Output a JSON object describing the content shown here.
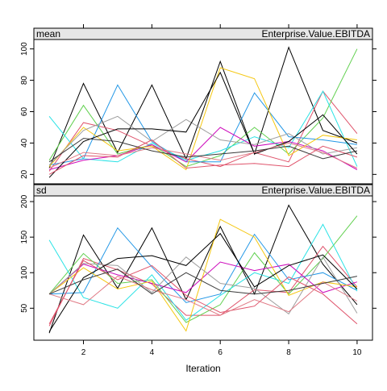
{
  "chart_data": {
    "type": "line",
    "xlabel": "Iteration",
    "x": [
      1,
      2,
      3,
      4,
      5,
      6,
      7,
      8,
      9,
      10
    ],
    "x_ticks": [
      2,
      4,
      6,
      8,
      10
    ],
    "xlim": [
      0.55,
      10.45
    ],
    "colors": [
      "#000000",
      "#DF536B",
      "#61D04F",
      "#2297E6",
      "#28E2E5",
      "#CD0BBC",
      "#F5C710",
      "#9E9E9E",
      "#000000",
      "#DF536B",
      "#E07A85",
      "#3A3A3A"
    ],
    "panels": [
      {
        "strip_left": "mean",
        "strip_right": "Enterprise.Value.EBITDA",
        "ylim": [
          14,
          106
        ],
        "y_ticks": [
          20,
          40,
          60,
          80,
          100
        ],
        "series": [
          {
            "values": [
              24,
              78,
              34,
              77,
              30,
              92,
              33,
              101,
              48,
              40
            ]
          },
          {
            "values": [
              22,
              53,
              48,
              38,
              30,
              25,
              34,
              28,
              73,
              46
            ]
          },
          {
            "values": [
              29,
              64,
              33,
              39,
              25,
              32,
              50,
              33,
              56,
              100
            ]
          },
          {
            "values": [
              26,
              30,
              77,
              41,
              28,
              28,
              72,
              44,
              42,
              39
            ]
          },
          {
            "values": [
              57,
              30,
              28,
              40,
              29,
              35,
              44,
              37,
              73,
              25
            ]
          },
          {
            "values": [
              23,
              29,
              32,
              39,
              28,
              50,
              38,
              41,
              35,
              23
            ]
          },
          {
            "values": [
              25,
              50,
              35,
              38,
              23,
              88,
              81,
              32,
              45,
              42
            ]
          },
          {
            "values": [
              26,
              48,
              57,
              41,
              55,
              42,
              39,
              46,
              33,
              37
            ]
          },
          {
            "values": [
              18,
              41,
              49,
              49,
              47,
              85,
              33,
              41,
              58,
              33
            ]
          },
          {
            "values": [
              20,
              32,
              31,
              42,
              24,
              26,
              27,
              25,
              38,
              31
            ]
          },
          {
            "values": [
              24,
              34,
              32,
              37,
              33,
              29,
              34,
              40,
              34,
              24
            ]
          },
          {
            "values": [
              28,
              43,
              41,
              35,
              31,
              33,
              35,
              38,
              30,
              35
            ]
          }
        ]
      },
      {
        "strip_left": "sd",
        "strip_right": "Enterprise.Value.EBITDA",
        "ylim": [
          5,
          208
        ],
        "y_ticks": [
          50,
          100,
          150,
          200
        ],
        "series": [
          {
            "values": [
              15,
              153,
              78,
              163,
              62,
              165,
              70,
              195,
              112,
              55
            ]
          },
          {
            "values": [
              25,
              120,
              104,
              84,
              40,
              40,
              76,
              72,
              137,
              80
            ]
          },
          {
            "values": [
              70,
              127,
              85,
              90,
              30,
              55,
              128,
              70,
              120,
              180
            ]
          },
          {
            "values": [
              70,
              72,
              163,
              108,
              58,
              70,
              154,
              90,
              100,
              75
            ]
          },
          {
            "values": [
              146,
              65,
              50,
              97,
              33,
              68,
              100,
              85,
              168,
              74
            ]
          },
          {
            "values": [
              70,
              112,
              97,
              85,
              72,
              115,
              103,
              112,
              72,
              87
            ]
          },
          {
            "values": [
              70,
              107,
              77,
              88,
              18,
              175,
              150,
              68,
              87,
              80
            ]
          },
          {
            "values": [
              70,
              113,
              110,
              72,
              122,
              85,
              78,
              42,
              122,
              43
            ]
          },
          {
            "values": [
              17,
              93,
              120,
              124,
              110,
              155,
              80,
              110,
              125,
              77
            ]
          },
          {
            "values": [
              28,
              117,
              90,
              110,
              68,
              44,
              53,
              94,
              70,
              28
            ]
          },
          {
            "values": [
              70,
              55,
              95,
              76,
              62,
              40,
              62,
              45,
              87,
              60
            ]
          },
          {
            "values": [
              70,
              90,
              105,
              70,
              100,
              75,
              70,
              75,
              85,
              95
            ]
          }
        ]
      }
    ]
  }
}
